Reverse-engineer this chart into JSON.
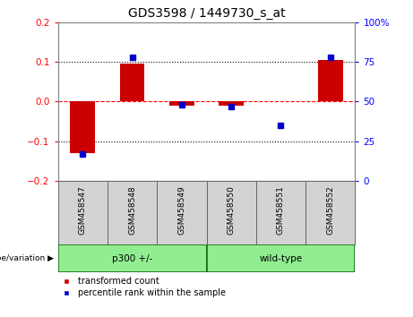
{
  "title": "GDS3598 / 1449730_s_at",
  "categories": [
    "GSM458547",
    "GSM458548",
    "GSM458549",
    "GSM458550",
    "GSM458551",
    "GSM458552"
  ],
  "bar_values": [
    -0.13,
    0.095,
    -0.01,
    -0.01,
    0.0,
    0.105
  ],
  "percentile_values": [
    17,
    78,
    48,
    47,
    35,
    78
  ],
  "bar_color": "#cc0000",
  "dot_color": "#0000cc",
  "ylim_left": [
    -0.2,
    0.2
  ],
  "ylim_right": [
    0,
    100
  ],
  "yticks_left": [
    -0.2,
    -0.1,
    0,
    0.1,
    0.2
  ],
  "yticks_right": [
    0,
    25,
    50,
    75,
    100
  ],
  "ytick_labels_right": [
    "0",
    "25",
    "50",
    "75",
    "100%"
  ],
  "dotted_lines": [
    -0.1,
    0.1
  ],
  "group_label_text": "genotype/variation",
  "legend_entries": [
    "transformed count",
    "percentile rank within the sample"
  ],
  "legend_colors": [
    "#cc0000",
    "#0000cc"
  ],
  "bar_width": 0.5,
  "background_color": "#ffffff",
  "title_fontsize": 10,
  "tick_fontsize": 7.5
}
